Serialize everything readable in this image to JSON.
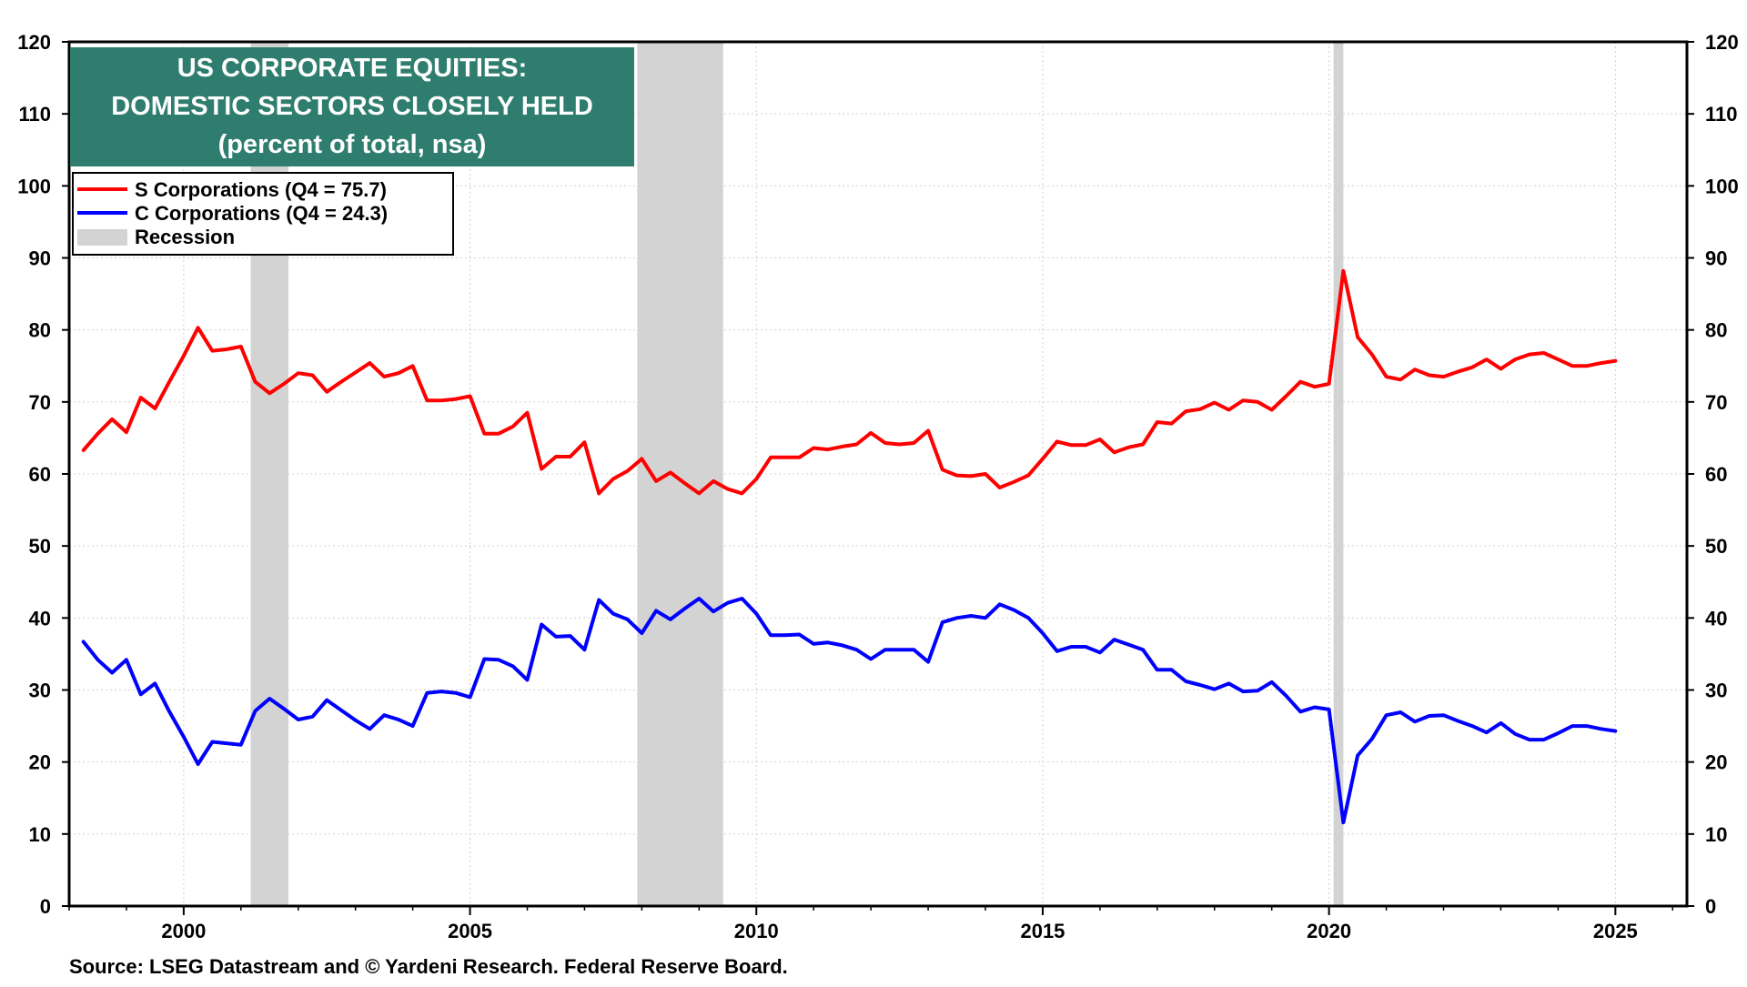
{
  "chart_data": {
    "type": "line",
    "title_lines": [
      "US CORPORATE EQUITIES:",
      "DOMESTIC SECTORS CLOSELY HELD",
      "(percent of total, nsa)"
    ],
    "source": "Source: LSEG Datastream and © Yardeni Research. Federal Reserve Board.",
    "xlim": [
      1998.0,
      2026.25
    ],
    "ylim": [
      0,
      120
    ],
    "y_ticks": [
      "0",
      "10",
      "20",
      "30",
      "40",
      "50",
      "60",
      "70",
      "80",
      "90",
      "100",
      "110",
      "120"
    ],
    "x_ticks": [
      "2000",
      "2005",
      "2010",
      "2015",
      "2020",
      "2025"
    ],
    "grid": true,
    "legend_position": "top-left",
    "colors": {
      "s_corporations": "#ff0000",
      "c_corporations": "#0000ff",
      "recession": "#d3d3d3",
      "title_bg": "#2e7d6e"
    },
    "recessions": [
      [
        2001.17,
        2001.83
      ],
      [
        2007.92,
        2009.42
      ],
      [
        2020.08,
        2020.25
      ]
    ],
    "series": [
      {
        "name": "S Corporations (Q4 = 75.7)",
        "color": "#ff0000",
        "x": [
          1998.25,
          1998.5,
          1998.75,
          1999.0,
          1999.25,
          1999.5,
          1999.75,
          2000.0,
          2000.25,
          2000.5,
          2000.75,
          2001.0,
          2001.25,
          2001.5,
          2001.75,
          2002.0,
          2002.25,
          2002.5,
          2002.75,
          2003.0,
          2003.25,
          2003.5,
          2003.75,
          2004.0,
          2004.25,
          2004.5,
          2004.75,
          2005.0,
          2005.25,
          2005.5,
          2005.75,
          2006.0,
          2006.25,
          2006.5,
          2006.75,
          2007.0,
          2007.25,
          2007.5,
          2007.75,
          2008.0,
          2008.25,
          2008.5,
          2008.75,
          2009.0,
          2009.25,
          2009.5,
          2009.75,
          2010.0,
          2010.25,
          2010.5,
          2010.75,
          2011.0,
          2011.25,
          2011.5,
          2011.75,
          2012.0,
          2012.25,
          2012.5,
          2012.75,
          2013.0,
          2013.25,
          2013.5,
          2013.75,
          2014.0,
          2014.25,
          2014.5,
          2014.75,
          2015.0,
          2015.25,
          2015.5,
          2015.75,
          2016.0,
          2016.25,
          2016.5,
          2016.75,
          2017.0,
          2017.25,
          2017.5,
          2017.75,
          2018.0,
          2018.25,
          2018.5,
          2018.75,
          2019.0,
          2019.25,
          2019.5,
          2019.75,
          2020.0,
          2020.25,
          2020.5,
          2020.75,
          2021.0,
          2021.25,
          2021.5,
          2021.75,
          2022.0,
          2022.25,
          2022.5,
          2022.75,
          2023.0,
          2023.25,
          2023.5,
          2023.75,
          2024.0,
          2024.25,
          2024.5,
          2024.75,
          2025.0
        ],
        "values": [
          63.3,
          65.6,
          67.6,
          65.8,
          70.6,
          69.1,
          72.8,
          76.4,
          80.3,
          77.1,
          77.3,
          77.7,
          72.8,
          71.2,
          72.5,
          74.0,
          73.7,
          71.4,
          72.8,
          74.1,
          75.4,
          73.5,
          74.0,
          75.0,
          70.2,
          70.2,
          70.4,
          70.8,
          65.6,
          65.6,
          66.6,
          68.5,
          60.7,
          62.4,
          62.4,
          64.4,
          57.3,
          59.3,
          60.4,
          62.1,
          59.0,
          60.2,
          58.7,
          57.3,
          59.0,
          57.9,
          57.3,
          59.3,
          62.3,
          62.3,
          62.3,
          63.6,
          63.4,
          63.8,
          64.1,
          65.7,
          64.3,
          64.1,
          64.3,
          66.0,
          60.6,
          59.8,
          59.7,
          60.0,
          58.1,
          58.9,
          59.8,
          62.1,
          64.5,
          64.0,
          64.0,
          64.8,
          63.0,
          63.7,
          64.1,
          67.2,
          67.0,
          68.7,
          69.0,
          69.9,
          68.9,
          70.2,
          70.0,
          68.9,
          70.8,
          72.8,
          72.1,
          72.5,
          88.2,
          79.0,
          76.6,
          73.5,
          73.1,
          74.5,
          73.7,
          73.5,
          74.2,
          74.8,
          75.9,
          74.6,
          75.9,
          76.6,
          76.8,
          75.9,
          75.0,
          75.0,
          75.4,
          75.7
        ]
      },
      {
        "name": "C Corporations (Q4 = 24.3)",
        "color": "#0000ff",
        "x": [
          1998.25,
          1998.5,
          1998.75,
          1999.0,
          1999.25,
          1999.5,
          1999.75,
          2000.0,
          2000.25,
          2000.5,
          2000.75,
          2001.0,
          2001.25,
          2001.5,
          2001.75,
          2002.0,
          2002.25,
          2002.5,
          2002.75,
          2003.0,
          2003.25,
          2003.5,
          2003.75,
          2004.0,
          2004.25,
          2004.5,
          2004.75,
          2005.0,
          2005.25,
          2005.5,
          2005.75,
          2006.0,
          2006.25,
          2006.5,
          2006.75,
          2007.0,
          2007.25,
          2007.5,
          2007.75,
          2008.0,
          2008.25,
          2008.5,
          2008.75,
          2009.0,
          2009.25,
          2009.5,
          2009.75,
          2010.0,
          2010.25,
          2010.5,
          2010.75,
          2011.0,
          2011.25,
          2011.5,
          2011.75,
          2012.0,
          2012.25,
          2012.5,
          2012.75,
          2013.0,
          2013.25,
          2013.5,
          2013.75,
          2014.0,
          2014.25,
          2014.5,
          2014.75,
          2015.0,
          2015.25,
          2015.5,
          2015.75,
          2016.0,
          2016.25,
          2016.5,
          2016.75,
          2017.0,
          2017.25,
          2017.5,
          2017.75,
          2018.0,
          2018.25,
          2018.5,
          2018.75,
          2019.0,
          2019.25,
          2019.5,
          2019.75,
          2020.0,
          2020.25,
          2020.5,
          2020.75,
          2021.0,
          2021.25,
          2021.5,
          2021.75,
          2022.0,
          2022.25,
          2022.5,
          2022.75,
          2023.0,
          2023.25,
          2023.5,
          2023.75,
          2024.0,
          2024.25,
          2024.5,
          2024.75,
          2025.0
        ],
        "values": [
          36.7,
          34.2,
          32.4,
          34.2,
          29.4,
          30.9,
          27.0,
          23.5,
          19.7,
          22.8,
          22.6,
          22.4,
          27.1,
          28.8,
          27.4,
          25.9,
          26.3,
          28.6,
          27.2,
          25.8,
          24.6,
          26.5,
          25.9,
          25.0,
          29.6,
          29.8,
          29.6,
          29.0,
          34.3,
          34.2,
          33.3,
          31.4,
          39.1,
          37.4,
          37.5,
          35.6,
          42.5,
          40.6,
          39.8,
          37.9,
          41.0,
          39.8,
          41.3,
          42.7,
          40.9,
          42.1,
          42.7,
          40.6,
          37.6,
          37.6,
          37.7,
          36.4,
          36.6,
          36.2,
          35.6,
          34.3,
          35.6,
          35.6,
          35.6,
          33.9,
          39.4,
          40.0,
          40.3,
          40.0,
          41.9,
          41.1,
          40.0,
          37.9,
          35.4,
          36.0,
          36.0,
          35.2,
          37.0,
          36.3,
          35.6,
          32.8,
          32.8,
          31.2,
          30.7,
          30.1,
          30.9,
          29.8,
          29.9,
          31.1,
          29.2,
          27.0,
          27.6,
          27.3,
          11.6,
          20.9,
          23.2,
          26.5,
          26.9,
          25.6,
          26.4,
          26.5,
          25.7,
          25.0,
          24.1,
          25.4,
          23.9,
          23.1,
          23.1,
          24.0,
          25.0,
          25.0,
          24.6,
          24.3
        ]
      }
    ],
    "legend": [
      {
        "label": "S Corporations (Q4 = 75.7)",
        "color": "#ff0000",
        "kind": "line"
      },
      {
        "label": "C Corporations (Q4 = 24.3)",
        "color": "#0000ff",
        "kind": "line"
      },
      {
        "label": "Recession",
        "color": "#d3d3d3",
        "kind": "patch"
      }
    ]
  }
}
